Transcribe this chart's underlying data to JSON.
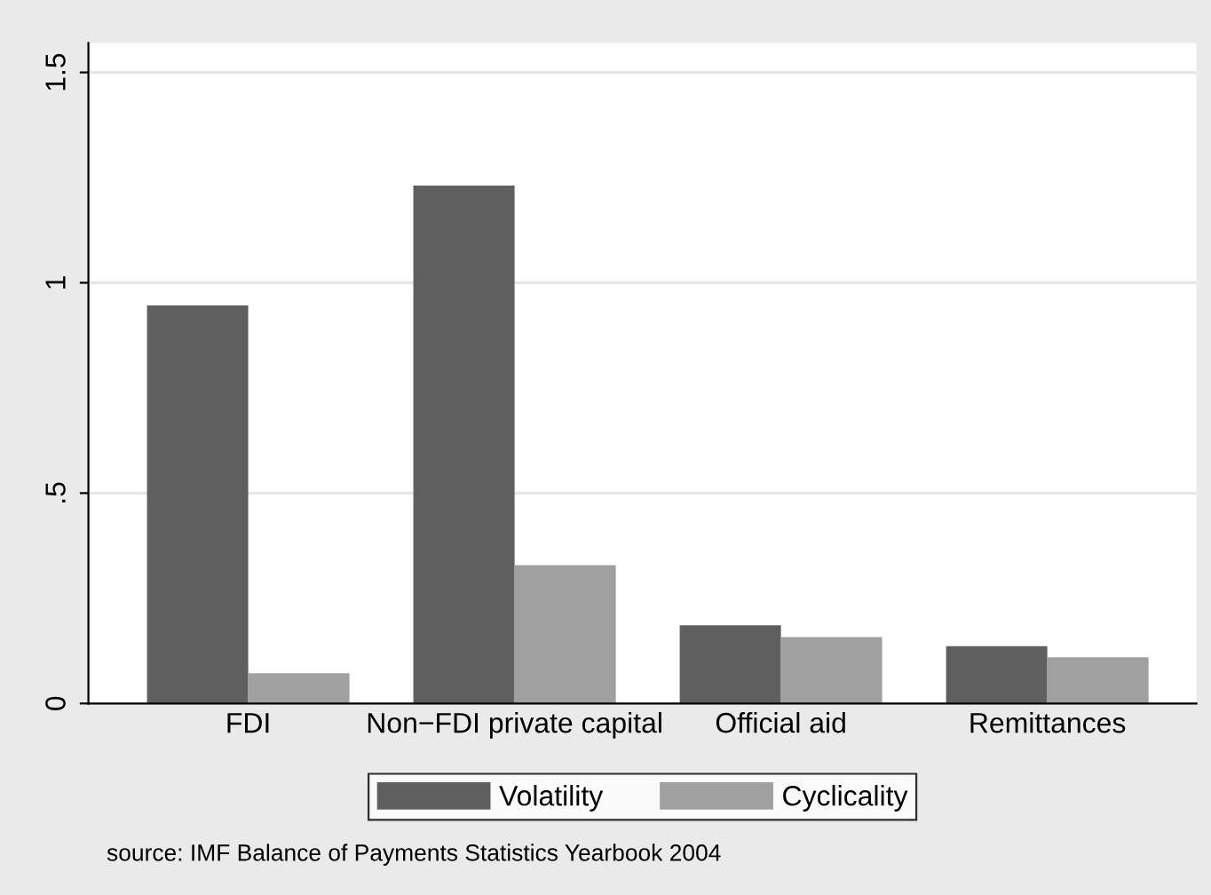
{
  "chart_data": {
    "type": "bar",
    "categories": [
      "FDI",
      "Non−FDI private capital",
      "Official aid",
      "Remittances"
    ],
    "series": [
      {
        "name": "Volatility",
        "color": "#5f5f5f",
        "values": [
          0.946,
          1.231,
          0.186,
          0.136
        ]
      },
      {
        "name": "Cyclicality",
        "color": "#a0a0a0",
        "values": [
          0.072,
          0.329,
          0.158,
          0.11
        ]
      }
    ],
    "ylim": [
      0,
      1.57
    ],
    "yticks": [
      0,
      {
        "value": 0.5,
        "label": ".5"
      },
      1,
      1.5
    ],
    "grid": "y",
    "legend": "bottom",
    "annotations": [
      "source: IMF Balance of Payments Statistics Yearbook 2004"
    ]
  }
}
